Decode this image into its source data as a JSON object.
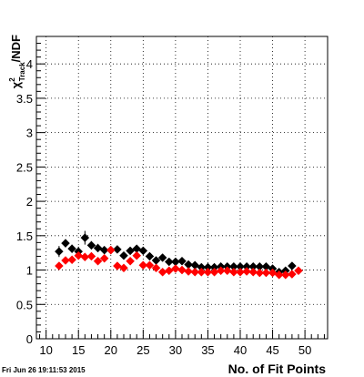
{
  "timestamp": "Fri Jun 26 19:11:53 2015",
  "chart_data": {
    "type": "scatter",
    "xlabel": "No. of Fit Points",
    "ylabel": {
      "chi": "χ",
      "sup": "2",
      "sub": "Track",
      "rest": "/NDF"
    },
    "xlim": [
      8.5,
      53.5
    ],
    "ylim": [
      0,
      4.4
    ],
    "x_ticks": [
      "10",
      "15",
      "20",
      "25",
      "30",
      "35",
      "40",
      "45",
      "50"
    ],
    "y_ticks": [
      "0",
      "0.5",
      "1",
      "1.5",
      "2",
      "2.5",
      "3",
      "3.5",
      "4"
    ],
    "grid": true,
    "colors": {
      "black": "#000000",
      "red": "#ff0000"
    },
    "series": [
      {
        "color": "black",
        "x": [
          12,
          13,
          14,
          15,
          16,
          17,
          18,
          19,
          20,
          21,
          22,
          23,
          24,
          25,
          26,
          27,
          28,
          29,
          30,
          31,
          32,
          33,
          34,
          35,
          36,
          37,
          38,
          39,
          40,
          41,
          42,
          43,
          44,
          45,
          46,
          47,
          48
        ],
        "y": [
          1.27,
          1.39,
          1.31,
          1.27,
          1.47,
          1.36,
          1.32,
          1.29,
          1.29,
          1.3,
          1.21,
          1.28,
          1.31,
          1.28,
          1.2,
          1.14,
          1.18,
          1.12,
          1.12,
          1.13,
          1.08,
          1.07,
          1.04,
          1.04,
          1.04,
          1.05,
          1.05,
          1.05,
          1.05,
          1.05,
          1.05,
          1.05,
          1.05,
          1.02,
          0.97,
          0.99,
          1.06
        ],
        "err": [
          0.08,
          0.06,
          0.06,
          0.07,
          0.1,
          0.06,
          0.06,
          0.05,
          0.05,
          0.05,
          0.04,
          0.04,
          0.04,
          0.04,
          0.04,
          0.03,
          0.03,
          0.03,
          0.03,
          0.03,
          0.03,
          0.03,
          0.02,
          0.02,
          0.02,
          0.02,
          0.02,
          0.02,
          0.02,
          0.02,
          0.02,
          0.02,
          0.02,
          0.02,
          0.02,
          0.02,
          0.03
        ]
      },
      {
        "color": "red",
        "x": [
          12,
          13,
          14,
          15,
          16,
          17,
          18,
          19,
          20,
          21,
          22,
          23,
          24,
          25,
          26,
          27,
          28,
          29,
          30,
          31,
          32,
          33,
          34,
          35,
          36,
          37,
          38,
          39,
          40,
          41,
          42,
          43,
          44,
          45,
          46,
          47,
          48,
          49
        ],
        "y": [
          1.06,
          1.14,
          1.15,
          1.21,
          1.19,
          1.2,
          1.13,
          1.17,
          1.29,
          1.06,
          1.03,
          1.13,
          1.21,
          1.07,
          1.07,
          1.03,
          0.97,
          0.99,
          1.02,
          1.0,
          0.98,
          0.97,
          0.97,
          0.97,
          0.97,
          0.99,
          0.99,
          0.97,
          0.97,
          0.98,
          0.97,
          0.96,
          0.96,
          0.96,
          0.93,
          0.93,
          0.94,
          0.99
        ],
        "err": [
          0.05,
          0.04,
          0.04,
          0.04,
          0.04,
          0.04,
          0.04,
          0.04,
          0.04,
          0.03,
          0.03,
          0.03,
          0.03,
          0.03,
          0.03,
          0.02,
          0.02,
          0.02,
          0.02,
          0.02,
          0.02,
          0.02,
          0.02,
          0.02,
          0.02,
          0.02,
          0.02,
          0.02,
          0.02,
          0.02,
          0.02,
          0.02,
          0.02,
          0.02,
          0.02,
          0.02,
          0.02,
          0.02
        ]
      }
    ]
  }
}
